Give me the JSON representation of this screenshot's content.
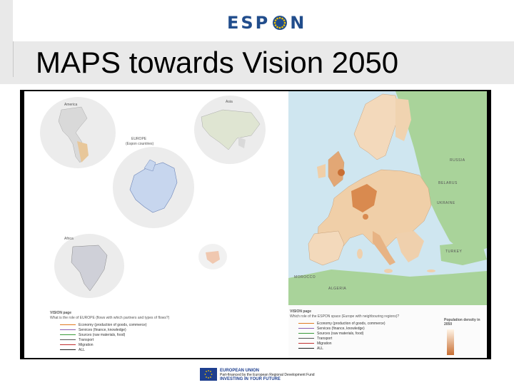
{
  "header": {
    "logo_left": "ESP",
    "logo_right": "N",
    "title": "MAPS towards Vision 2050"
  },
  "left_panel": {
    "globe_labels": [
      "America",
      "Asia",
      "Africa"
    ],
    "center_title": "EUROPE",
    "center_subtitle": "(Espon countries)",
    "bottom_heading": "VISION page",
    "bottom_question": "What is the role of EUROPE (flows with which partners and types of flows?)",
    "legend": [
      {
        "label": "Economy (production of goods, commerce)",
        "color": "#e07a20"
      },
      {
        "label": "Services (finance, knowledge)",
        "color": "#8a5fb0"
      },
      {
        "label": "Sources (raw materials, food)",
        "color": "#3a9a3a"
      },
      {
        "label": "Transport",
        "color": "#555555"
      },
      {
        "label": "Migration",
        "color": "#c03030"
      },
      {
        "label": "ALL",
        "color": "#222222"
      }
    ]
  },
  "right_panel": {
    "countries": {
      "russia": "RUSSIA",
      "belarus": "BELARUS",
      "ukraine": "UKRAINE",
      "turkey": "TURKEY",
      "morocco": "MOROCCO",
      "algeria": "ALGERIA"
    },
    "bottom_heading": "VISION page",
    "bottom_question": "Which role of the ESPON space (Europe with neighbouring regions)?",
    "legend": [
      {
        "label": "Economy (production of goods, commerce)",
        "color": "#e07a20"
      },
      {
        "label": "Services (finance, knowledge)",
        "color": "#8a5fb0"
      },
      {
        "label": "Sources (raw materials, food)",
        "color": "#3a9a3a"
      },
      {
        "label": "Transport",
        "color": "#555555"
      },
      {
        "label": "Migration",
        "color": "#c03030"
      },
      {
        "label": "ALL",
        "color": "#222222"
      }
    ],
    "density_legend_title": "Population density in 2050"
  },
  "footer": {
    "line1": "EUROPEAN UNION",
    "line2": "Part-financed by the European Regional Development Fund",
    "line3": "INVESTING IN YOUR FUTURE"
  },
  "colors": {
    "espon_blue": "#214d8c",
    "land": "#f3d9bb",
    "land_dense": "#d98a4f",
    "sea": "#cfe6f0",
    "outside": "#a9d39a"
  }
}
